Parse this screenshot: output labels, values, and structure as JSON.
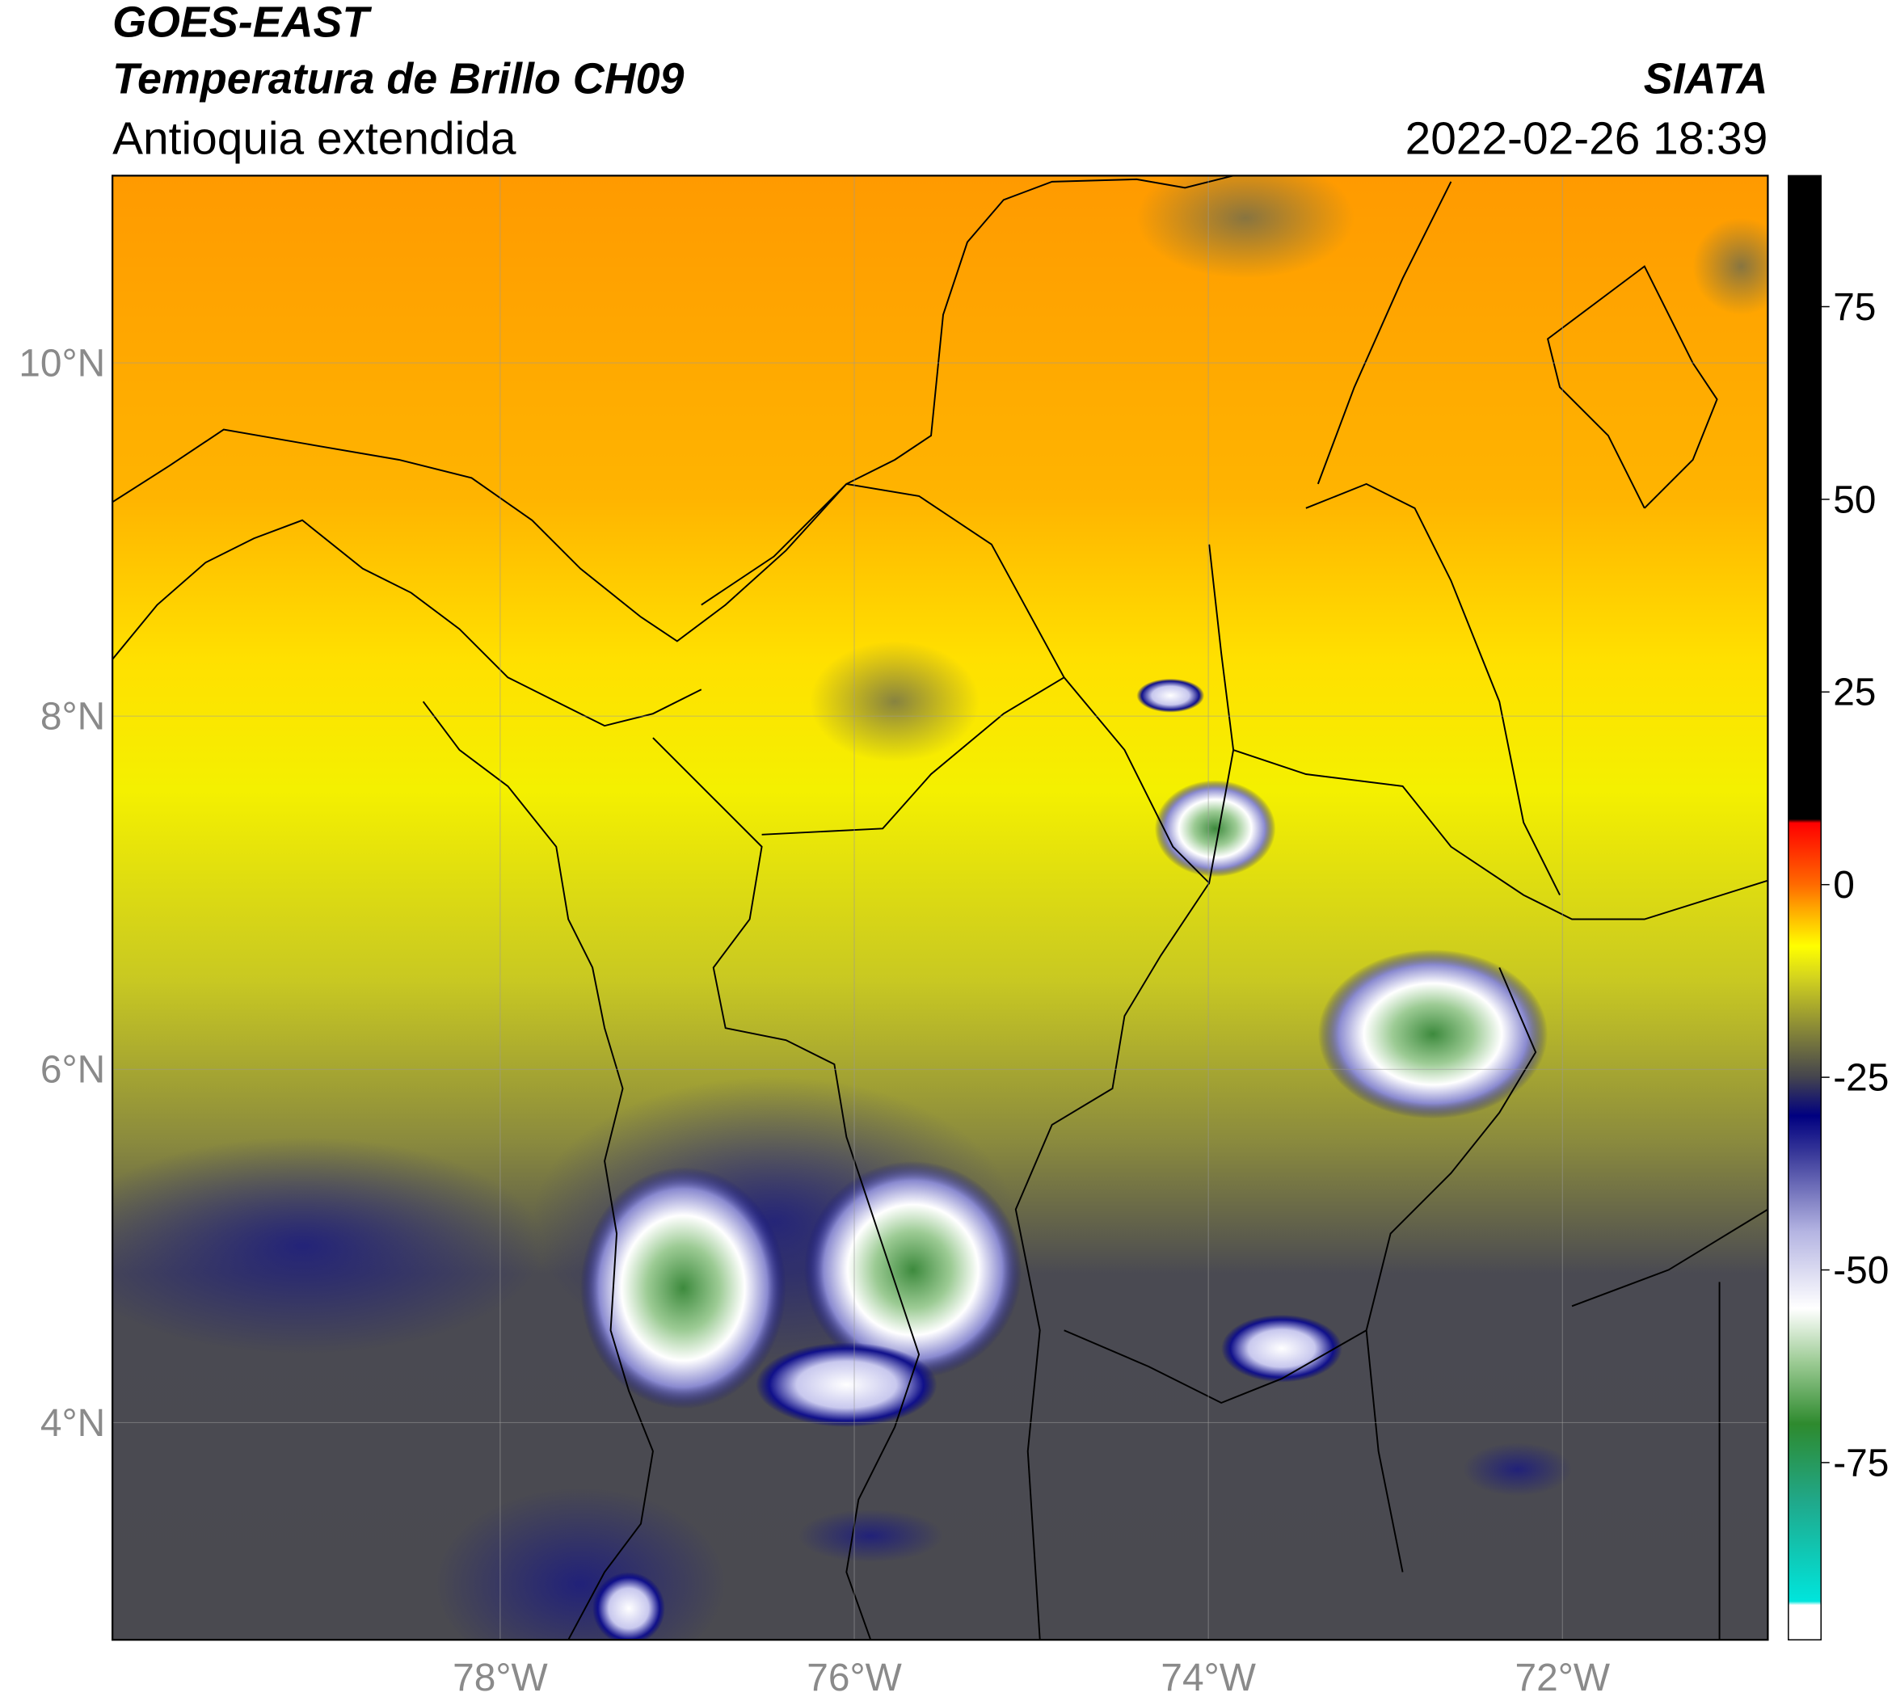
{
  "map": {
    "title": "GOES-EAST",
    "product": "Temperatura de Brillo CH09",
    "region": "Antioquia extendida",
    "source": "SIATA",
    "datetime": "2022-02-26 18:39",
    "xlim": [
      -80.19,
      -70.84
    ],
    "ylim": [
      2.77,
      11.06
    ],
    "xticks": [
      {
        "value": -78,
        "label": "78°W"
      },
      {
        "value": -76,
        "label": "76°W"
      },
      {
        "value": -74,
        "label": "74°W"
      },
      {
        "value": -72,
        "label": "72°W"
      }
    ],
    "yticks": [
      {
        "value": 10,
        "label": "10°N"
      },
      {
        "value": 8,
        "label": "8°N"
      },
      {
        "value": 6,
        "label": "6°N"
      },
      {
        "value": 4,
        "label": "4°N"
      }
    ],
    "grid": true,
    "colorbar": {
      "lim": [
        -98,
        92
      ],
      "ticks": [
        75,
        50,
        25,
        0,
        -25,
        -50,
        -75
      ],
      "colorscale": [
        [
          -98,
          "#ffffff"
        ],
        [
          -93.5,
          "#ffffff"
        ],
        [
          -93,
          "#00e5dc"
        ],
        [
          -80,
          "#20a88a"
        ],
        [
          -70,
          "#2e8a2e"
        ],
        [
          -62,
          "#9ccb94"
        ],
        [
          -55,
          "#ffffff"
        ],
        [
          -45,
          "#b4b4e2"
        ],
        [
          -35,
          "#3a3a9a"
        ],
        [
          -30,
          "#000080"
        ],
        [
          -25,
          "#44444e"
        ],
        [
          -20,
          "#7a7a3c"
        ],
        [
          -12,
          "#d4d41e"
        ],
        [
          -8,
          "#ffff00"
        ],
        [
          -3,
          "#ffa500"
        ],
        [
          0,
          "#ff6a00"
        ],
        [
          8,
          "#ff0000"
        ],
        [
          8.5,
          "#000000"
        ],
        [
          92,
          "#000000"
        ]
      ]
    }
  }
}
